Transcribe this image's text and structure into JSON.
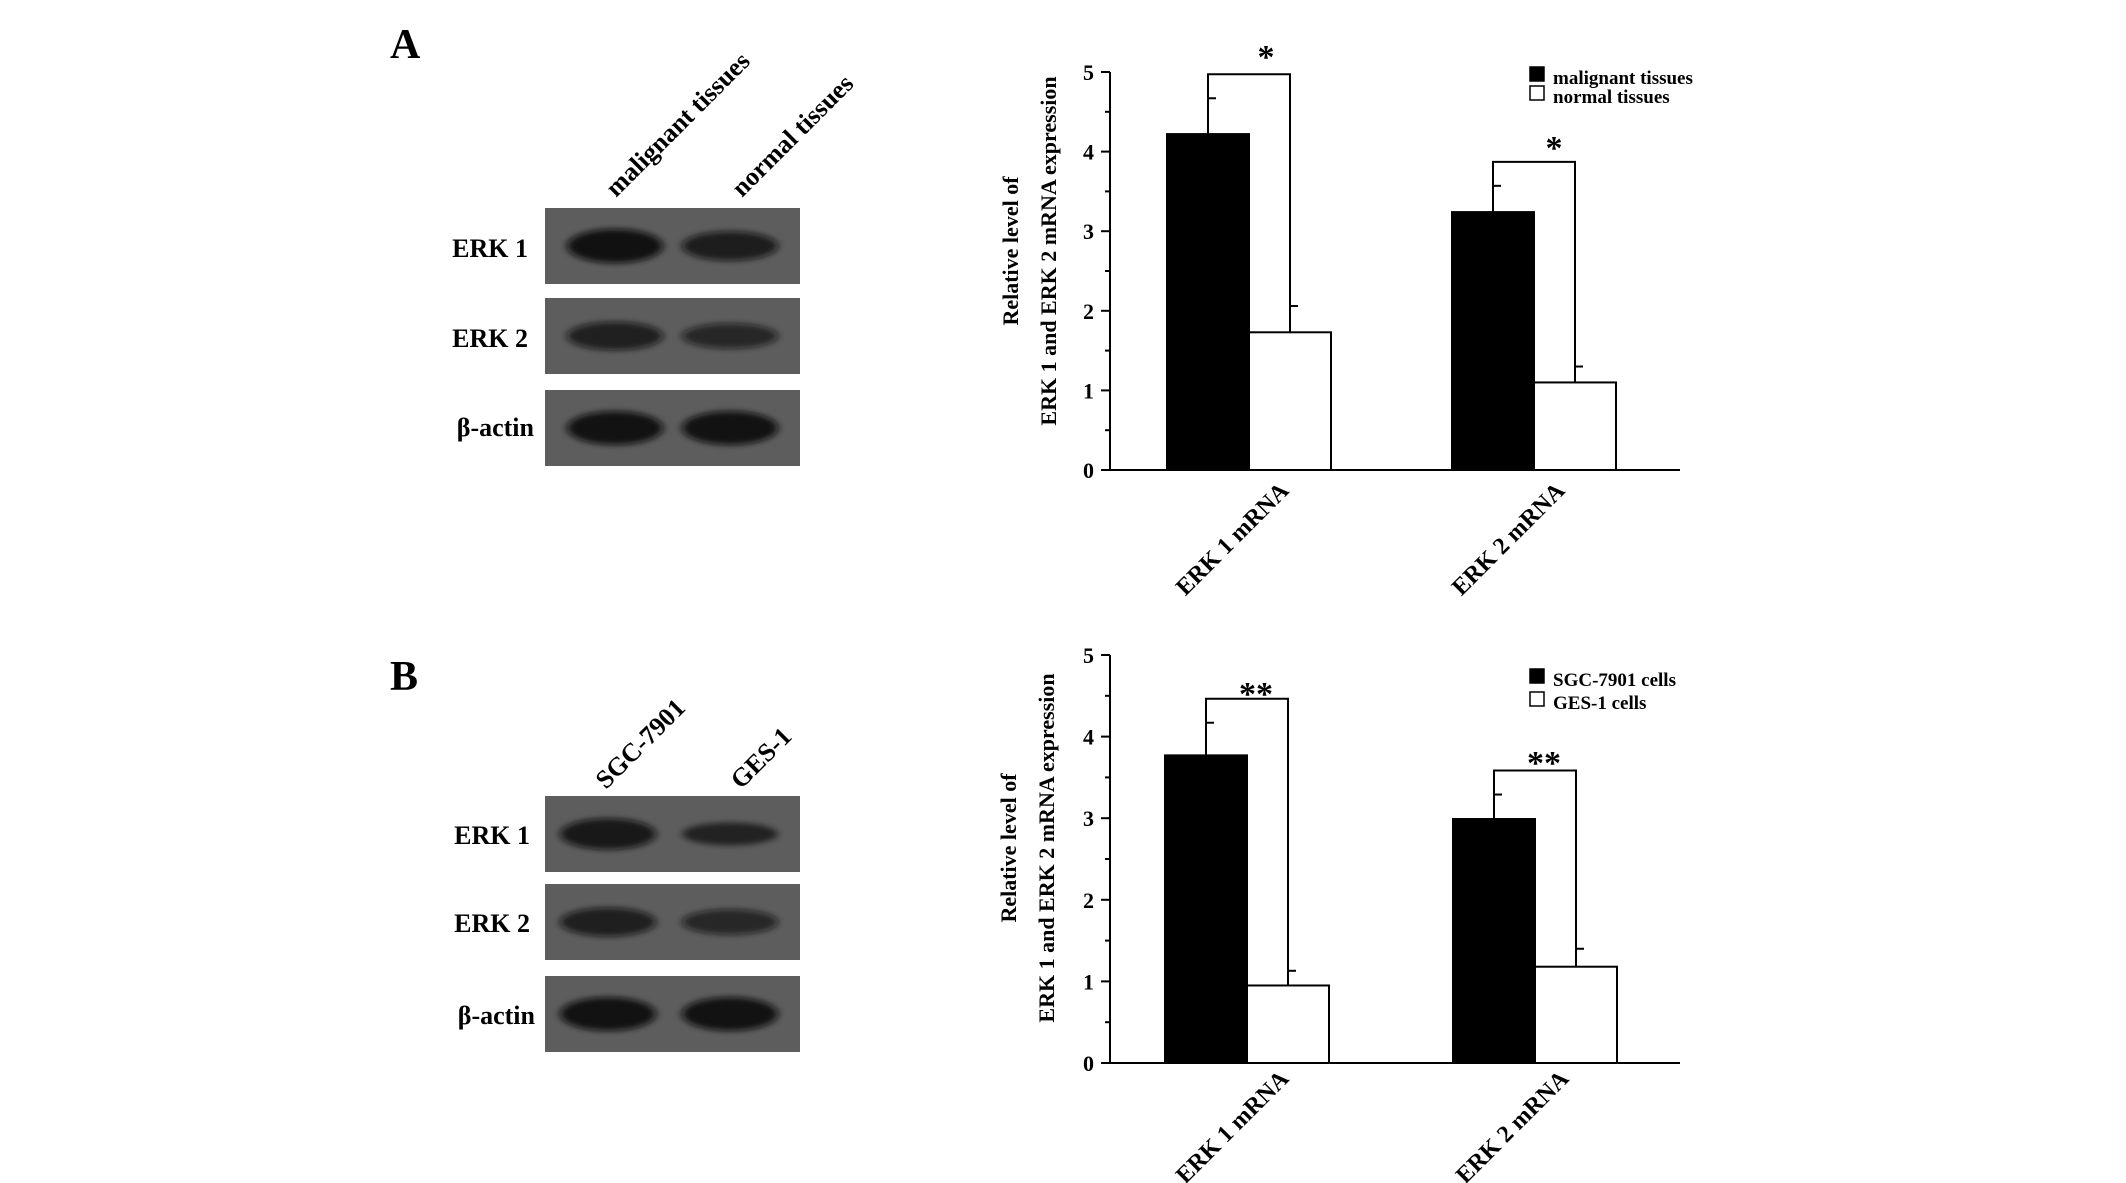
{
  "panels": [
    {
      "letter": "A",
      "blot": {
        "lanes": [
          "malignant tissues",
          "normal tissues"
        ],
        "rows": [
          {
            "label": "ERK 1",
            "intensity": [
              0.92,
              0.72
            ]
          },
          {
            "label": "ERK 2",
            "intensity": [
              0.68,
              0.55
            ]
          },
          {
            "label": "β-actin",
            "intensity": [
              0.9,
              0.9
            ]
          }
        ]
      },
      "chart_data": {
        "type": "bar",
        "categories": [
          "ERK 1 mRNA",
          "ERK 2 mRNA"
        ],
        "series": [
          {
            "name": "malignant tissues",
            "values": [
              4.22,
              3.24
            ],
            "errors": [
              0.45,
              0.33
            ],
            "color": "#000000"
          },
          {
            "name": "normal tissues",
            "values": [
              1.73,
              1.1
            ],
            "errors": [
              0.33,
              0.2
            ],
            "color": "#ffffff"
          }
        ],
        "significance": [
          "*",
          "*"
        ],
        "ylabel_line1": "Relative level of",
        "ylabel_line2": "ERK 1 and ERK 2 mRNA expression",
        "ylim": [
          0,
          5
        ],
        "yticks": [
          "0",
          "1",
          "2",
          "3",
          "4",
          "5"
        ],
        "legend_position": "top-right",
        "grid": false
      }
    },
    {
      "letter": "B",
      "blot": {
        "lanes": [
          "SGC-7901",
          "GES-1"
        ],
        "rows": [
          {
            "label": "ERK 1",
            "intensity": [
              0.8,
              0.45
            ]
          },
          {
            "label": "ERK 2",
            "intensity": [
              0.7,
              0.55
            ]
          },
          {
            "label": "β-actin",
            "intensity": [
              0.9,
              0.9
            ]
          }
        ]
      },
      "chart_data": {
        "type": "bar",
        "categories": [
          "ERK 1 mRNA",
          "ERK 2 mRNA"
        ],
        "series": [
          {
            "name": "SGC-7901 cells",
            "values": [
              3.77,
              2.99
            ],
            "errors": [
              0.4,
              0.3
            ],
            "color": "#000000"
          },
          {
            "name": "GES-1 cells",
            "values": [
              0.95,
              1.18
            ],
            "errors": [
              0.18,
              0.22
            ],
            "color": "#ffffff"
          }
        ],
        "significance": [
          "**",
          "**"
        ],
        "ylabel_line1": "Relative level of",
        "ylabel_line2": "ERK 1 and ERK 2 mRNA expression",
        "ylim": [
          0,
          5
        ],
        "yticks": [
          "0",
          "1",
          "2",
          "3",
          "4",
          "5"
        ],
        "legend_position": "top-right",
        "grid": false
      }
    }
  ]
}
